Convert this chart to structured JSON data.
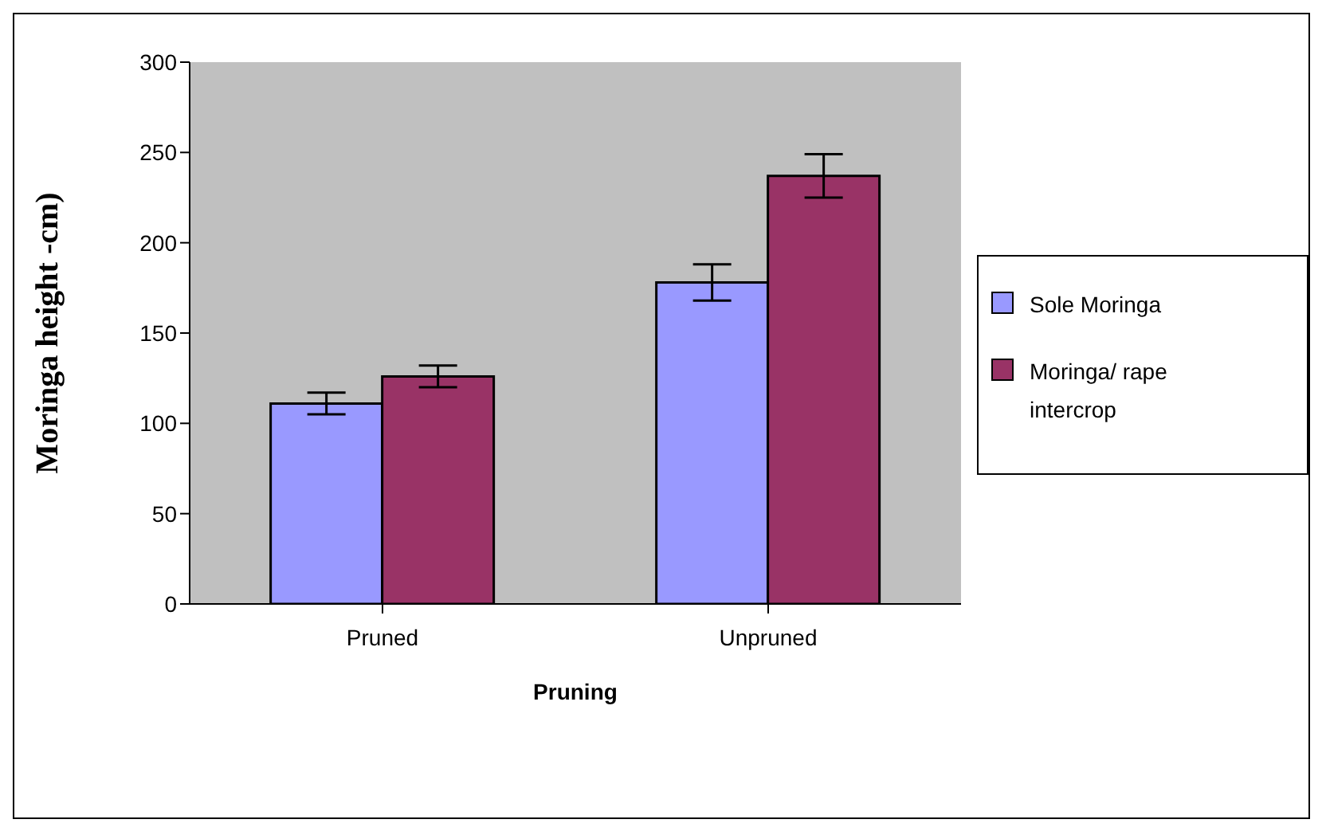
{
  "chart_data": {
    "type": "bar",
    "xlabel": "Pruning",
    "ylabel": "Moringa height -cm)",
    "categories": [
      "Pruned",
      "Unpruned"
    ],
    "series": [
      {
        "name": "Sole Moringa",
        "color": "#9999ff",
        "values": [
          111,
          178
        ],
        "errors": [
          6,
          10
        ]
      },
      {
        "name": "Moringa/ rape intercrop",
        "color": "#993366",
        "values": [
          126,
          237
        ],
        "errors": [
          6,
          12
        ]
      }
    ],
    "ylim": [
      0,
      300
    ],
    "yticks": [
      0,
      50,
      100,
      150,
      200,
      250,
      300
    ],
    "grid": false,
    "legend": "right"
  }
}
